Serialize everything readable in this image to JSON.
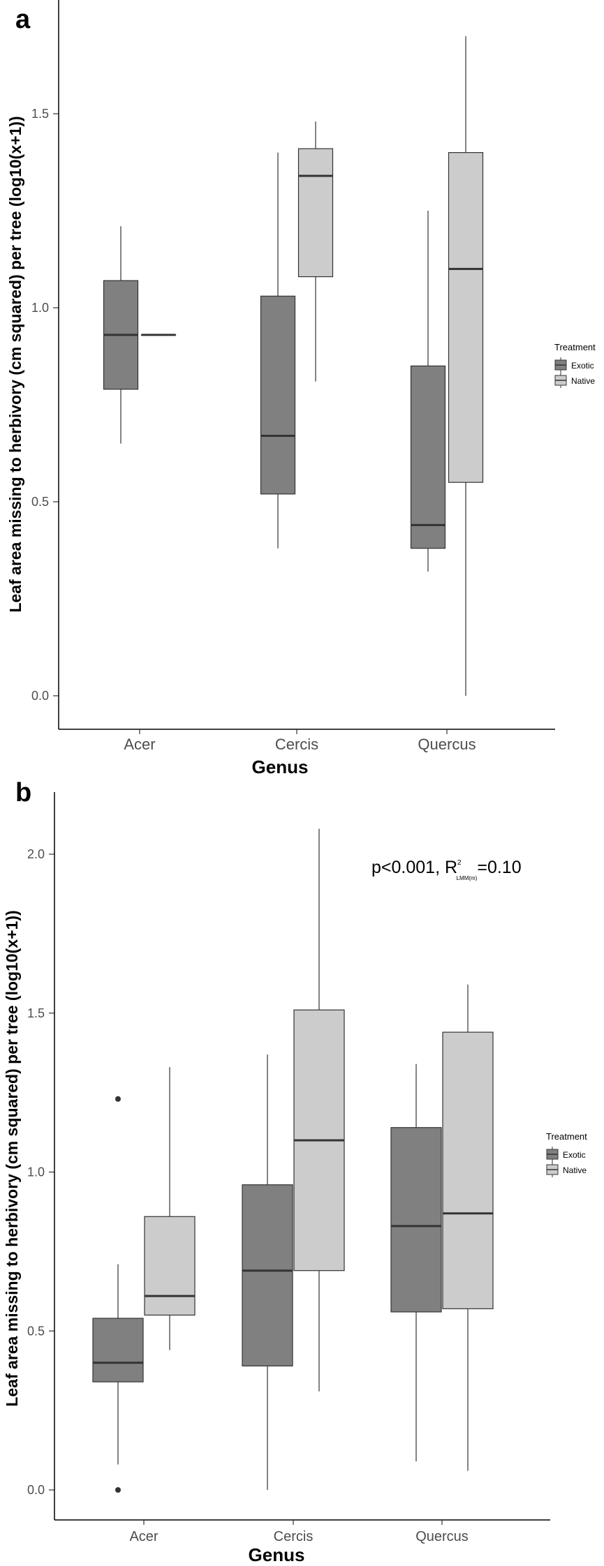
{
  "chart_data": [
    {
      "panel": "a",
      "type": "box",
      "title": "",
      "xlabel": "Genus",
      "ylabel": "Leaf area missing to herbivory (cm squared) per tree (log10(x+1))",
      "categories": [
        "Acer",
        "Cercis",
        "Quercus"
      ],
      "ylim": [
        -0.08,
        1.78
      ],
      "yticks": [
        0.0,
        0.5,
        1.0,
        1.5
      ],
      "ytick_labels": [
        "0.0",
        "0.5",
        "1.0",
        "1.5"
      ],
      "legend": {
        "title": "Treatment",
        "position": "right",
        "entries": [
          "Exotic",
          "Native"
        ]
      },
      "colors": {
        "Exotic": "#808080",
        "Native": "#cccccc",
        "line": "#333333"
      },
      "series": [
        {
          "name": "Exotic",
          "boxes": [
            {
              "category": "Acer",
              "whisker_low": 0.65,
              "q1": 0.79,
              "median": 0.93,
              "q3": 1.07,
              "whisker_high": 1.21,
              "outliers": []
            },
            {
              "category": "Cercis",
              "whisker_low": 0.38,
              "q1": 0.52,
              "median": 0.67,
              "q3": 1.03,
              "whisker_high": 1.4,
              "outliers": []
            },
            {
              "category": "Quercus",
              "whisker_low": 0.32,
              "q1": 0.38,
              "median": 0.44,
              "q3": 0.85,
              "whisker_high": 1.25,
              "outliers": []
            }
          ]
        },
        {
          "name": "Native",
          "boxes": [
            {
              "category": "Acer",
              "whisker_low": 0.93,
              "q1": 0.93,
              "median": 0.93,
              "q3": 0.93,
              "whisker_high": 0.93,
              "outliers": []
            },
            {
              "category": "Cercis",
              "whisker_low": 0.81,
              "q1": 1.08,
              "median": 1.34,
              "q3": 1.41,
              "whisker_high": 1.48,
              "outliers": []
            },
            {
              "category": "Quercus",
              "whisker_low": 0.0,
              "q1": 0.55,
              "median": 1.1,
              "q3": 1.4,
              "whisker_high": 1.7,
              "outliers": []
            }
          ]
        }
      ]
    },
    {
      "panel": "b",
      "type": "box",
      "title": "",
      "xlabel": "Genus",
      "ylabel": "Leaf area missing to herbivory (cm squared) per tree (log10(x+1))",
      "categories": [
        "Acer",
        "Cercis",
        "Quercus"
      ],
      "ylim": [
        -0.1,
        2.2
      ],
      "yticks": [
        0.0,
        0.5,
        1.0,
        1.5,
        2.0
      ],
      "ytick_labels": [
        "0.0",
        "0.5",
        "1.0",
        "1.5",
        "2.0"
      ],
      "legend": {
        "title": "Treatment",
        "position": "right",
        "entries": [
          "Exotic",
          "Native"
        ]
      },
      "annotation": {
        "main": "p<0.001, R",
        "sup": "2",
        "sub": "LMM(m)",
        "tail": "=0.10",
        "position": "top-right"
      },
      "colors": {
        "Exotic": "#808080",
        "Native": "#cccccc",
        "line": "#333333"
      },
      "series": [
        {
          "name": "Exotic",
          "boxes": [
            {
              "category": "Acer",
              "whisker_low": 0.08,
              "q1": 0.34,
              "median": 0.4,
              "q3": 0.54,
              "whisker_high": 0.71,
              "outliers": [
                1.23,
                0.0
              ]
            },
            {
              "category": "Cercis",
              "whisker_low": 0.0,
              "q1": 0.39,
              "median": 0.69,
              "q3": 0.96,
              "whisker_high": 1.37,
              "outliers": []
            },
            {
              "category": "Quercus",
              "whisker_low": 0.09,
              "q1": 0.56,
              "median": 0.83,
              "q3": 1.14,
              "whisker_high": 1.34,
              "outliers": []
            }
          ]
        },
        {
          "name": "Native",
          "boxes": [
            {
              "category": "Acer",
              "whisker_low": 0.44,
              "q1": 0.55,
              "median": 0.61,
              "q3": 0.86,
              "whisker_high": 1.33,
              "outliers": []
            },
            {
              "category": "Cercis",
              "whisker_low": 0.31,
              "q1": 0.69,
              "median": 1.1,
              "q3": 1.51,
              "whisker_high": 2.08,
              "outliers": []
            },
            {
              "category": "Quercus",
              "whisker_low": 0.06,
              "q1": 0.57,
              "median": 0.87,
              "q3": 1.44,
              "whisker_high": 1.59,
              "outliers": []
            }
          ]
        }
      ]
    }
  ]
}
